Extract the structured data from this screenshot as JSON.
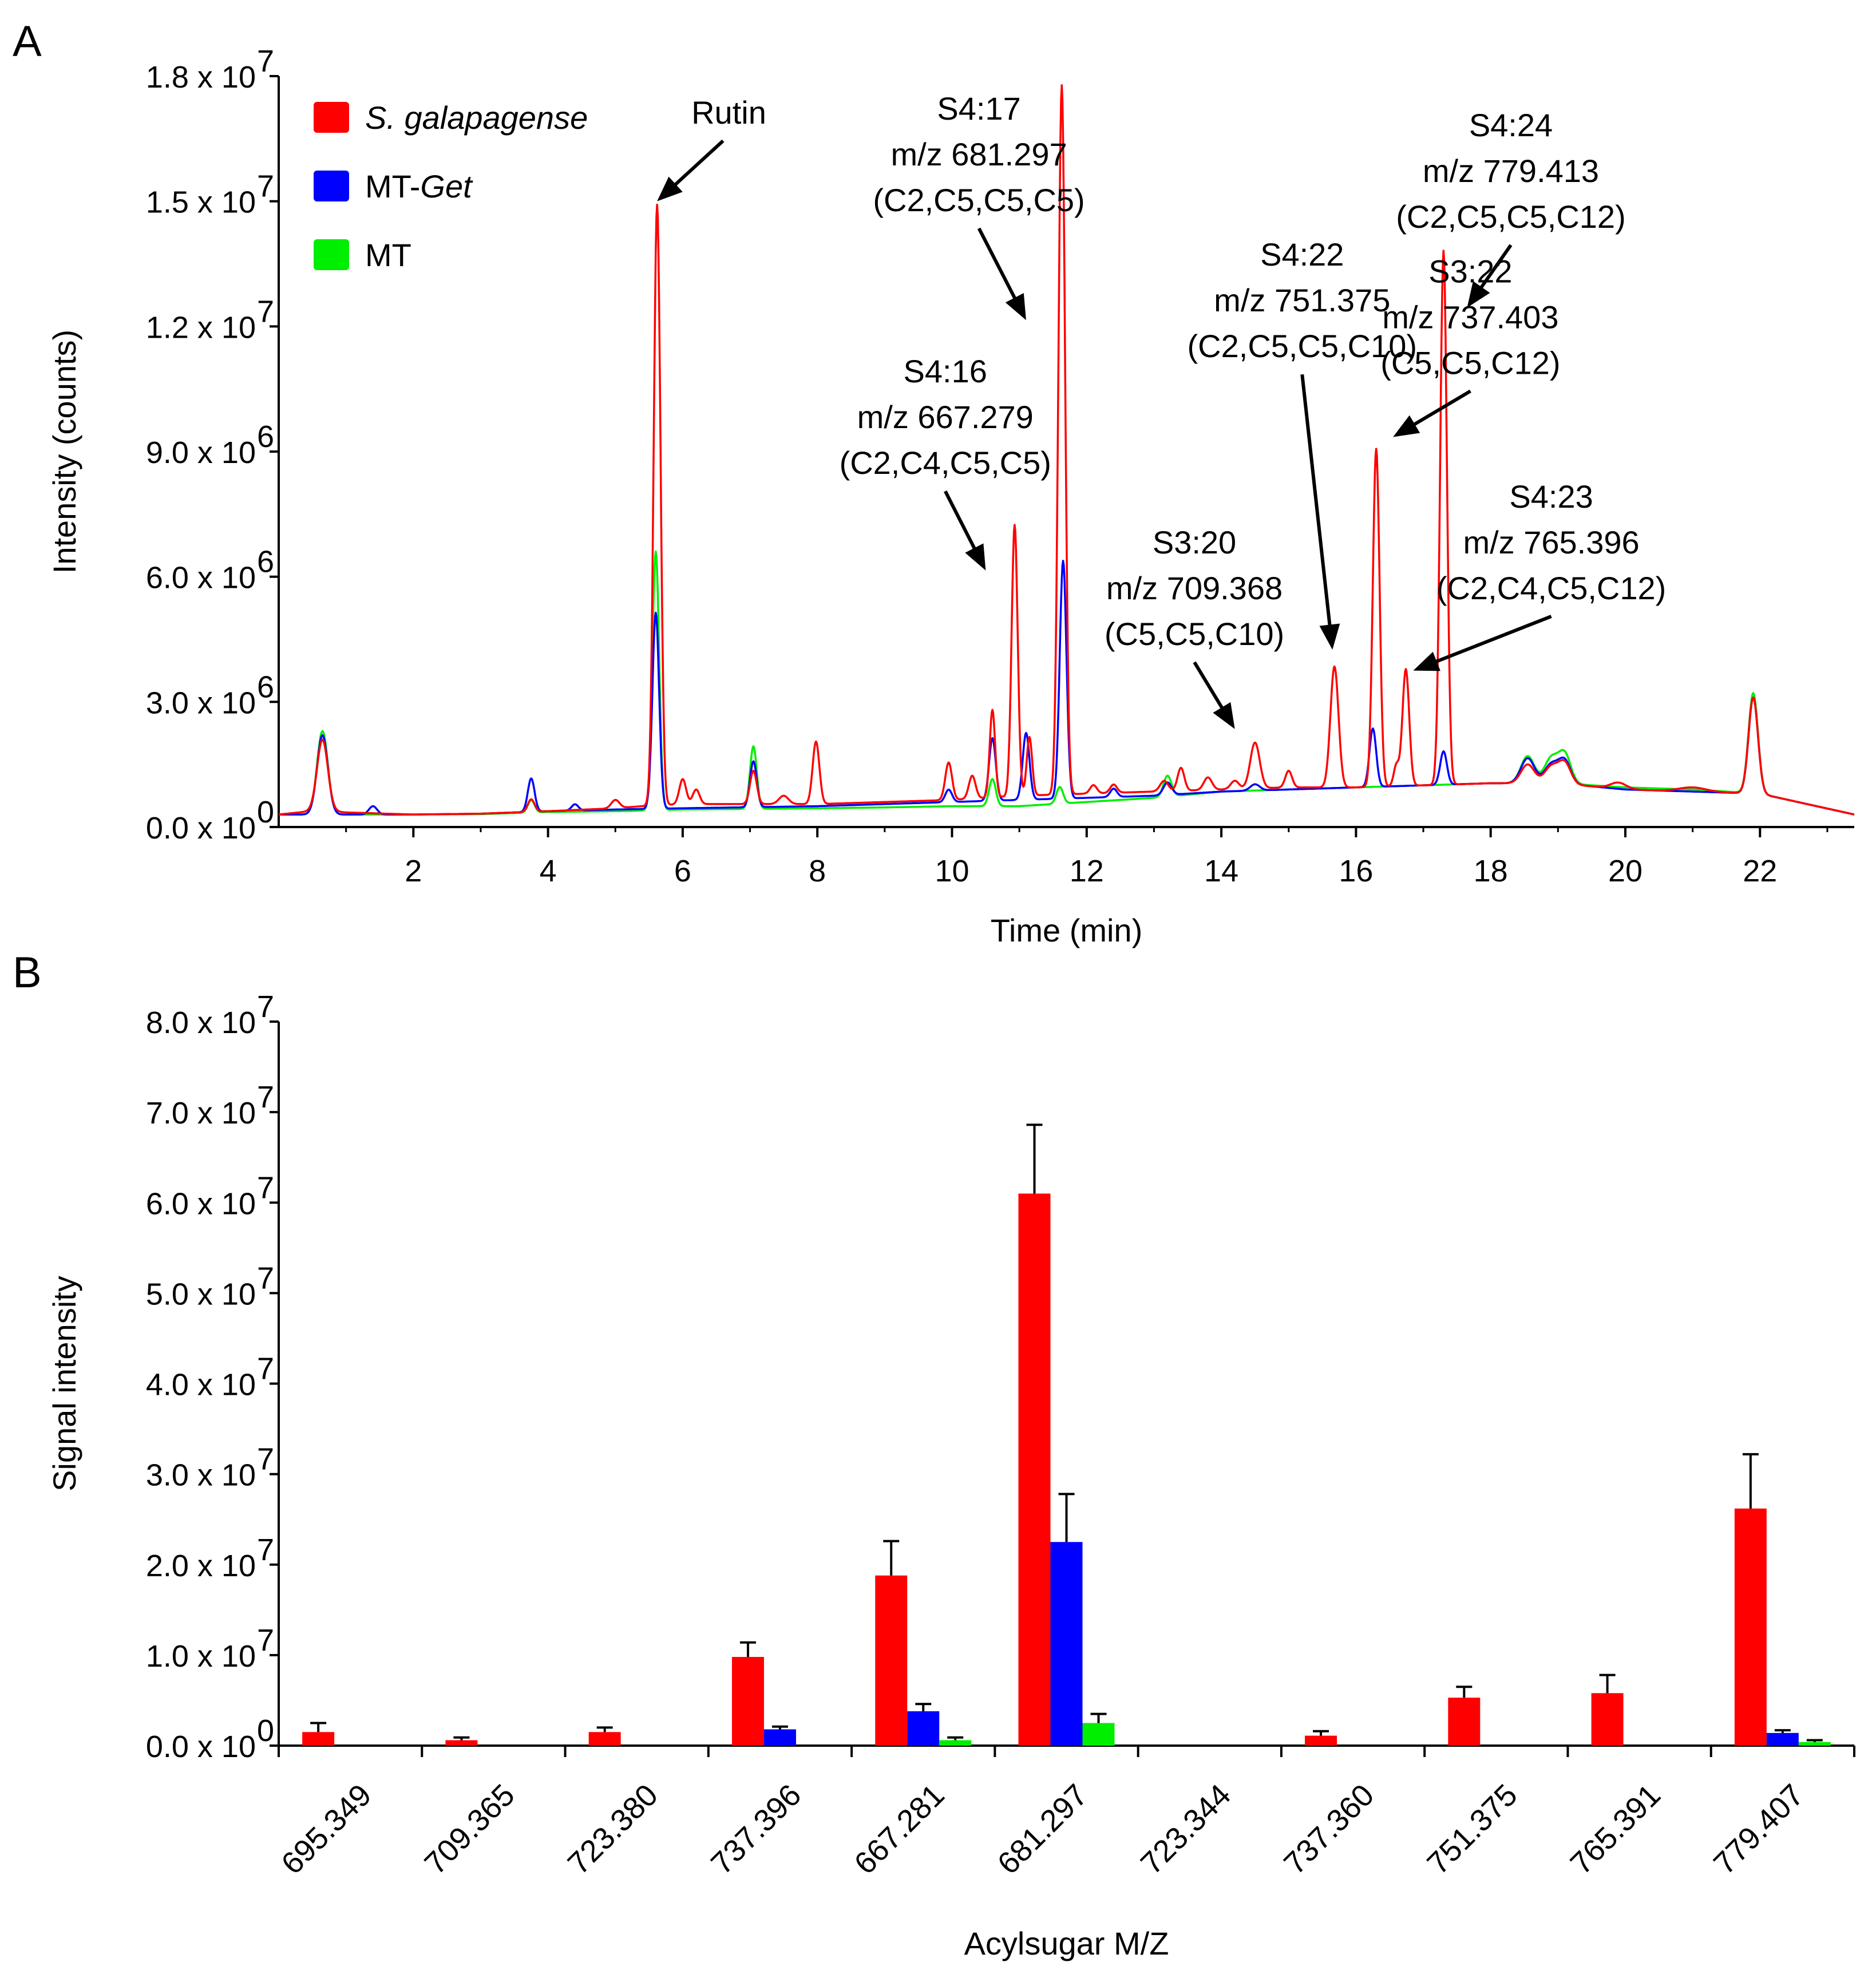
{
  "figure": {
    "panel_a_letter": "A",
    "panel_b_letter": "B"
  },
  "chart_data": [
    {
      "panel": "A",
      "type": "line",
      "title": "",
      "xlabel": "Time (min)",
      "ylabel": "Intensity (counts)",
      "xlim": [
        0,
        23.4
      ],
      "ylim": [
        0,
        18000000
      ],
      "x_ticks": [
        2,
        4,
        6,
        8,
        10,
        12,
        14,
        16,
        18,
        20,
        22
      ],
      "y_ticks": [
        {
          "base": "0.0 x 10",
          "exp": "0"
        },
        {
          "base": "3.0 x 10",
          "exp": "6"
        },
        {
          "base": "6.0 x 10",
          "exp": "6"
        },
        {
          "base": "9.0 x 10",
          "exp": "6"
        },
        {
          "base": "1.2 x 10",
          "exp": "7"
        },
        {
          "base": "1.5 x 10",
          "exp": "7"
        },
        {
          "base": "1.8 x 10",
          "exp": "7"
        }
      ],
      "y_tick_values": [
        0,
        3000000,
        6000000,
        9000000,
        12000000,
        15000000,
        18000000
      ],
      "legend": [
        {
          "name": "S. galapagense",
          "color": "#ff0000",
          "italic": "S. galapagense",
          "plain": ""
        },
        {
          "name": "MT-Get",
          "color": "#0000ff",
          "italic": "Get",
          "plain": "MT-"
        },
        {
          "name": "MT",
          "color": "#00ee00",
          "italic": "",
          "plain": "MT"
        }
      ],
      "series": [
        {
          "name": "S. galapagense",
          "color": "#ff0000",
          "baseline": [
            [
              0,
              300000
            ],
            [
              0.6,
              400000
            ],
            [
              1,
              350000
            ],
            [
              2,
              300000
            ],
            [
              3,
              320000
            ],
            [
              4,
              380000
            ],
            [
              5,
              450000
            ],
            [
              5.4,
              500000
            ],
            [
              6,
              550000
            ],
            [
              8,
              550000
            ],
            [
              9,
              600000
            ],
            [
              10,
              650000
            ],
            [
              11,
              750000
            ],
            [
              12,
              800000
            ],
            [
              13,
              850000
            ],
            [
              14,
              900000
            ],
            [
              15,
              950000
            ],
            [
              16,
              950000
            ],
            [
              17,
              1000000
            ],
            [
              18,
              1050000
            ],
            [
              19,
              1050000
            ],
            [
              20,
              900000
            ],
            [
              21,
              850000
            ],
            [
              22,
              800000
            ],
            [
              23.4,
              300000
            ]
          ],
          "peaks": [
            [
              0.65,
              1700000,
              0.08
            ],
            [
              3.75,
              300000,
              0.05
            ],
            [
              5.0,
              200000,
              0.06
            ],
            [
              5.62,
              14400000,
              0.05
            ],
            [
              6.0,
              600000,
              0.05
            ],
            [
              6.2,
              350000,
              0.05
            ],
            [
              7.05,
              800000,
              0.05
            ],
            [
              7.5,
              200000,
              0.07
            ],
            [
              7.98,
              1500000,
              0.05
            ],
            [
              9.95,
              900000,
              0.05
            ],
            [
              10.3,
              550000,
              0.05
            ],
            [
              10.6,
              2100000,
              0.04
            ],
            [
              10.93,
              6500000,
              0.045
            ],
            [
              11.15,
              1400000,
              0.04
            ],
            [
              11.63,
              17000000,
              0.05
            ],
            [
              12.1,
              200000,
              0.05
            ],
            [
              12.4,
              200000,
              0.05
            ],
            [
              13.15,
              250000,
              0.06
            ],
            [
              13.4,
              550000,
              0.05
            ],
            [
              13.8,
              300000,
              0.06
            ],
            [
              14.2,
              200000,
              0.06
            ],
            [
              14.5,
              1100000,
              0.07
            ],
            [
              15.0,
              400000,
              0.05
            ],
            [
              15.68,
              2900000,
              0.06
            ],
            [
              16.3,
              8100000,
              0.05
            ],
            [
              16.6,
              500000,
              0.04
            ],
            [
              16.74,
              2800000,
              0.05
            ],
            [
              17.3,
              12800000,
              0.05
            ],
            [
              18.55,
              450000,
              0.1
            ],
            [
              18.9,
              400000,
              0.1
            ],
            [
              19.1,
              500000,
              0.09
            ],
            [
              19.9,
              150000,
              0.12
            ],
            [
              21.0,
              100000,
              0.2
            ],
            [
              21.9,
              2300000,
              0.07
            ]
          ]
        },
        {
          "name": "MT-Get",
          "color": "#0000ff",
          "baseline": [
            [
              0,
              300000
            ],
            [
              1,
              300000
            ],
            [
              2,
              300000
            ],
            [
              3,
              320000
            ],
            [
              4,
              380000
            ],
            [
              5,
              420000
            ],
            [
              6,
              450000
            ],
            [
              8,
              500000
            ],
            [
              9,
              550000
            ],
            [
              10,
              600000
            ],
            [
              11,
              650000
            ],
            [
              12,
              700000
            ],
            [
              13,
              750000
            ],
            [
              14,
              850000
            ],
            [
              15,
              900000
            ],
            [
              16,
              950000
            ],
            [
              17,
              1000000
            ],
            [
              18,
              1050000
            ],
            [
              19,
              1050000
            ],
            [
              20,
              900000
            ],
            [
              21,
              850000
            ],
            [
              22,
              800000
            ],
            [
              23.4,
              300000
            ]
          ],
          "peaks": [
            [
              0.65,
              1900000,
              0.08
            ],
            [
              1.4,
              200000,
              0.06
            ],
            [
              3.75,
              800000,
              0.05
            ],
            [
              4.4,
              150000,
              0.05
            ],
            [
              5.6,
              4700000,
              0.05
            ],
            [
              7.05,
              1100000,
              0.05
            ],
            [
              9.95,
              300000,
              0.05
            ],
            [
              10.6,
              1500000,
              0.05
            ],
            [
              11.1,
              1600000,
              0.05
            ],
            [
              11.65,
              5700000,
              0.05
            ],
            [
              12.4,
              200000,
              0.05
            ],
            [
              13.2,
              300000,
              0.06
            ],
            [
              14.5,
              150000,
              0.07
            ],
            [
              16.25,
              1400000,
              0.05
            ],
            [
              17.3,
              800000,
              0.05
            ],
            [
              18.55,
              600000,
              0.1
            ],
            [
              18.9,
              450000,
              0.1
            ],
            [
              19.1,
              550000,
              0.09
            ],
            [
              21.9,
              2300000,
              0.07
            ]
          ]
        },
        {
          "name": "MT",
          "color": "#00ee00",
          "baseline": [
            [
              0,
              300000
            ],
            [
              1,
              300000
            ],
            [
              2,
              300000
            ],
            [
              3,
              310000
            ],
            [
              4,
              360000
            ],
            [
              5,
              380000
            ],
            [
              6,
              420000
            ],
            [
              8,
              450000
            ],
            [
              9,
              470000
            ],
            [
              10,
              500000
            ],
            [
              11,
              500000
            ],
            [
              12,
              600000
            ],
            [
              13,
              700000
            ],
            [
              14,
              850000
            ],
            [
              15,
              900000
            ],
            [
              16,
              950000
            ],
            [
              17,
              1000000
            ],
            [
              18,
              1050000
            ],
            [
              19,
              1050000
            ],
            [
              20,
              950000
            ],
            [
              21,
              900000
            ],
            [
              22,
              800000
            ],
            [
              23.4,
              300000
            ]
          ],
          "peaks": [
            [
              0.65,
              2000000,
              0.08
            ],
            [
              3.75,
              300000,
              0.05
            ],
            [
              5.6,
              6200000,
              0.05
            ],
            [
              7.05,
              1500000,
              0.05
            ],
            [
              10.6,
              650000,
              0.05
            ],
            [
              11.6,
              400000,
              0.05
            ],
            [
              13.2,
              500000,
              0.06
            ],
            [
              18.55,
              650000,
              0.1
            ],
            [
              18.9,
              600000,
              0.1
            ],
            [
              19.1,
              700000,
              0.09
            ],
            [
              21.9,
              2400000,
              0.07
            ]
          ]
        }
      ],
      "annotations": [
        {
          "lines": [
            "Rutin"
          ],
          "arrow_to": [
            5.62,
            15000000
          ],
          "arrow_from": [
            6.6,
            16450000
          ]
        },
        {
          "lines": [
            "S4:17",
            "m/z 681.297",
            "(C2,C5,C5,C5)"
          ],
          "arrow_to": [
            11.1,
            12150000
          ],
          "arrow_from": [
            10.4,
            14350000
          ]
        },
        {
          "lines": [
            "S4:16",
            "m/z 667.279",
            "(C2,C4,C5,C5)"
          ],
          "arrow_to": [
            10.5,
            6150000
          ],
          "arrow_from": [
            9.9,
            8050000
          ]
        },
        {
          "lines": [
            "S3:20",
            "m/z 709.368",
            "(C5,C5,C10)"
          ],
          "arrow_to": [
            14.2,
            2350000
          ],
          "arrow_from": [
            13.6,
            3950000
          ]
        },
        {
          "lines": [
            "S4:22",
            "m/z 751.375",
            "(C2,C5,C5,C10)"
          ],
          "arrow_to": [
            15.65,
            4250000
          ],
          "arrow_from": [
            15.2,
            10850000
          ]
        },
        {
          "lines": [
            "S4:24",
            "m/z 779.413",
            "(C2,C5,C5,C12)"
          ],
          "arrow_to": [
            17.65,
            12450000
          ],
          "arrow_from": [
            18.3,
            13950000
          ]
        },
        {
          "lines": [
            "S3:22",
            "m/z 737.403",
            "(C5,C5,C12)"
          ],
          "arrow_to": [
            16.55,
            9350000
          ],
          "arrow_from": [
            17.7,
            10450000
          ]
        },
        {
          "lines": [
            "S4:23",
            "m/z 765.396",
            "(C2,C4,C5,C12)"
          ],
          "arrow_to": [
            16.85,
            3750000
          ],
          "arrow_from": [
            18.9,
            5050000
          ]
        }
      ]
    },
    {
      "panel": "B",
      "type": "bar",
      "title": "",
      "xlabel": "Acylsugar M/Z",
      "ylabel": "Signal intensity",
      "ylim": [
        0,
        80000000
      ],
      "categories": [
        "695.349",
        "709.365",
        "723.380",
        "737.396",
        "667.281",
        "681.297",
        "723.344",
        "737.360",
        "751.375",
        "765.391",
        "779.407"
      ],
      "y_ticks": [
        {
          "base": "0.0 x 10",
          "exp": "0"
        },
        {
          "base": "1.0 x 10",
          "exp": "7"
        },
        {
          "base": "2.0 x 10",
          "exp": "7"
        },
        {
          "base": "3.0 x 10",
          "exp": "7"
        },
        {
          "base": "4.0 x 10",
          "exp": "7"
        },
        {
          "base": "5.0 x 10",
          "exp": "7"
        },
        {
          "base": "6.0 x 10",
          "exp": "7"
        },
        {
          "base": "7.0 x 10",
          "exp": "7"
        },
        {
          "base": "8.0 x 10",
          "exp": "7"
        }
      ],
      "y_tick_values": [
        0,
        10000000,
        20000000,
        30000000,
        40000000,
        50000000,
        60000000,
        70000000,
        80000000
      ],
      "series": [
        {
          "name": "S. galapagense",
          "color": "#ff0000",
          "values": [
            1500000,
            600000,
            1500000,
            9800000,
            18800000,
            61000000,
            0,
            1100000,
            5300000,
            5800000,
            26200000
          ],
          "errors": [
            1000000,
            300000,
            500000,
            1600000,
            3800000,
            7600000,
            0,
            500000,
            1200000,
            2000000,
            6000000
          ]
        },
        {
          "name": "MT-Get",
          "color": "#0000ff",
          "values": [
            0,
            0,
            0,
            1800000,
            3800000,
            22500000,
            0,
            0,
            0,
            0,
            1400000
          ],
          "errors": [
            0,
            0,
            0,
            300000,
            800000,
            5300000,
            0,
            0,
            0,
            0,
            300000
          ]
        },
        {
          "name": "MT",
          "color": "#00ee00",
          "values": [
            0,
            0,
            0,
            0,
            600000,
            2500000,
            0,
            0,
            0,
            0,
            400000
          ],
          "errors": [
            0,
            0,
            0,
            0,
            300000,
            1000000,
            0,
            0,
            0,
            0,
            200000
          ]
        }
      ]
    }
  ]
}
